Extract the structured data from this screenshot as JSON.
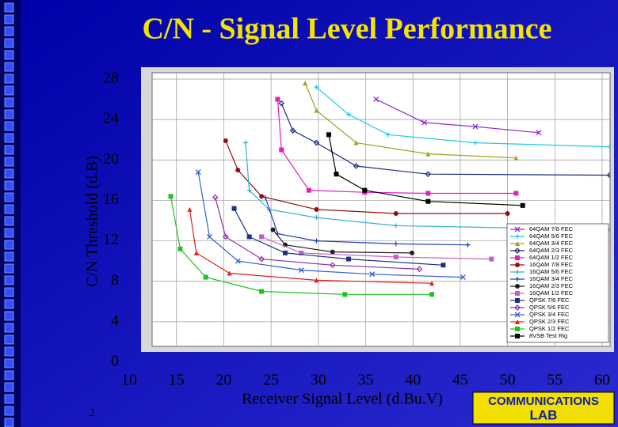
{
  "chart_data": {
    "type": "line",
    "title": "C/N - Signal Level Performance",
    "ylabel": "C/N Threshold (d.B)",
    "xlabel": "Receiver Signal Level (d.Bu.V)",
    "xlim": [
      10,
      60
    ],
    "xticks": [
      10,
      15,
      20,
      25,
      30,
      35,
      40,
      45,
      50,
      55,
      60
    ],
    "ylim": [
      0,
      28
    ],
    "yticks": [
      0,
      4,
      8,
      12,
      16,
      20,
      24,
      28
    ],
    "grid": true,
    "legend": "lower right",
    "series": [
      {
        "name": "64QAM 7/8 FEC",
        "color": "#8a2be2",
        "marker": "x",
        "x": [
          36.1,
          41.2,
          46.6,
          53.3
        ],
        "values": [
          26.0,
          23.7,
          23.3,
          22.7
        ]
      },
      {
        "name": "64QAM 5/6 FEC",
        "color": "#20c8e0",
        "marker": "plus",
        "x": [
          29.8,
          33.2,
          37.4,
          46.6,
          60.8
        ],
        "values": [
          27.2,
          24.5,
          22.5,
          21.7,
          21.3
        ]
      },
      {
        "name": "64QAM 3/4 FEC",
        "color": "#a0a020",
        "marker": "triangle",
        "x": [
          28.6,
          29.8,
          34.0,
          41.6,
          50.9
        ],
        "values": [
          27.6,
          24.9,
          21.7,
          20.6,
          20.2
        ]
      },
      {
        "name": "64QAM 2/3 FEC",
        "color": "#1a2a80",
        "marker": "diamond",
        "x": [
          26.1,
          27.3,
          29.8,
          34.0,
          41.6,
          60.8
        ],
        "values": [
          25.6,
          22.9,
          21.7,
          19.4,
          18.6,
          18.5
        ]
      },
      {
        "name": "64QAM 1/2 FEC",
        "color": "#e020c0",
        "marker": "square",
        "x": [
          25.7,
          26.1,
          29.0,
          34.9,
          41.6,
          50.9
        ],
        "values": [
          26.0,
          21.0,
          17.0,
          16.8,
          16.7,
          16.7
        ]
      },
      {
        "name": "16QAM 7/8 FEC",
        "color": "#901010",
        "marker": "circle",
        "x": [
          20.2,
          21.5,
          24.0,
          29.8,
          38.2,
          50.0
        ],
        "values": [
          21.9,
          19.0,
          16.4,
          15.1,
          14.7,
          14.7
        ]
      },
      {
        "name": "16QAM 5/6 FEC",
        "color": "#30b0d0",
        "marker": "plus",
        "x": [
          22.3,
          22.7,
          24.8,
          29.8,
          38.2,
          60.8
        ],
        "values": [
          21.7,
          17.0,
          15.1,
          14.3,
          13.5,
          13.1
        ]
      },
      {
        "name": "16QAM 3/4 FEC",
        "color": "#2040c0",
        "marker": "plus",
        "x": [
          24.4,
          25.7,
          29.8,
          38.2,
          45.8
        ],
        "values": [
          16.3,
          12.7,
          12.0,
          11.7,
          11.6
        ]
      },
      {
        "name": "16QAM 2/3 FEC",
        "color": "#202020",
        "marker": "circle",
        "x": [
          25.2,
          26.5,
          31.5,
          39.9
        ],
        "values": [
          13.1,
          11.6,
          10.9,
          10.8
        ]
      },
      {
        "name": "16QAM 1/2 FEC",
        "color": "#c060c0",
        "marker": "square",
        "x": [
          24.0,
          28.2,
          38.2,
          48.3
        ],
        "values": [
          12.4,
          10.8,
          10.4,
          10.2
        ]
      },
      {
        "name": "QPSK 7/8 FEC",
        "color": "#203080",
        "marker": "square",
        "x": [
          21.1,
          22.7,
          26.5,
          33.2,
          43.2
        ],
        "values": [
          15.2,
          12.4,
          10.8,
          10.2,
          9.6
        ]
      },
      {
        "name": "QPSK 5/6 FEC",
        "color": "#9030a0",
        "marker": "diamond",
        "x": [
          19.1,
          20.2,
          24.0,
          31.5,
          40.7
        ],
        "values": [
          16.3,
          12.4,
          10.2,
          9.6,
          9.2
        ]
      },
      {
        "name": "QPSK 3/4 FEC",
        "color": "#3060d0",
        "marker": "x",
        "x": [
          17.3,
          18.5,
          21.5,
          28.2,
          35.7,
          45.3
        ],
        "values": [
          18.8,
          12.4,
          10.0,
          9.1,
          8.7,
          8.4
        ]
      },
      {
        "name": "QPSK 2/3 FEC",
        "color": "#e02020",
        "marker": "triangle",
        "x": [
          16.4,
          17.1,
          20.6,
          29.8,
          42.0
        ],
        "values": [
          15.1,
          10.8,
          8.8,
          8.1,
          7.8
        ]
      },
      {
        "name": "QPSK 1/2 FEC",
        "color": "#20c020",
        "marker": "square",
        "x": [
          14.4,
          15.4,
          18.1,
          24.0,
          32.8,
          42.0
        ],
        "values": [
          16.4,
          11.2,
          8.4,
          7.0,
          6.7,
          6.7
        ]
      },
      {
        "name": "8VSB Test Rig",
        "color": "#000000",
        "marker": "square",
        "x": [
          31.1,
          31.9,
          34.9,
          41.6,
          51.6
        ],
        "values": [
          22.5,
          18.6,
          17.0,
          15.9,
          15.5
        ]
      }
    ]
  },
  "page_number": "2",
  "logo": {
    "line1": "COMMUNICATIONS",
    "line2": "LAB"
  }
}
